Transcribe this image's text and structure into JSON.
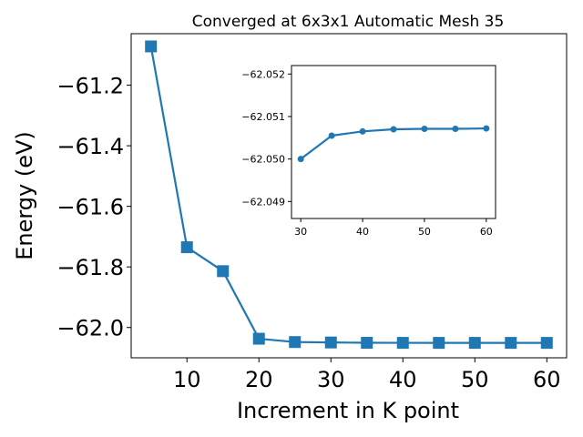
{
  "chart_data": [
    {
      "type": "line",
      "title": "Converged at 6x3x1 Automatic Mesh 35",
      "xlabel": "Increment in K point",
      "ylabel": "Energy (eV)",
      "xlim": [
        2.25,
        62.75
      ],
      "ylim": [
        -62.1,
        -61.03
      ],
      "x_ticks": [
        10,
        20,
        30,
        40,
        50,
        60
      ],
      "x_tick_labels": [
        "10",
        "20",
        "30",
        "40",
        "50",
        "60"
      ],
      "y_ticks": [
        -62.0,
        -61.8,
        -61.6,
        -61.4,
        -61.2
      ],
      "y_tick_labels": [
        "−62.0",
        "−61.8",
        "−61.6",
        "−61.4",
        "−61.2"
      ],
      "marker": "square",
      "color": "#1f77b4",
      "series": [
        {
          "x": [
            5,
            10,
            15,
            20,
            25,
            30,
            35,
            40,
            45,
            50,
            55,
            60
          ],
          "values": [
            -61.072,
            -61.735,
            -61.814,
            -62.037,
            -62.048,
            -62.0494,
            -62.0505,
            -62.0506,
            -62.0507,
            -62.0507,
            -62.0507,
            -62.0507
          ]
        }
      ]
    },
    {
      "type": "line",
      "title": "",
      "xlabel": "",
      "ylabel": "",
      "xlim": [
        28.5,
        61.5
      ],
      "ylim": [
        -62.0486,
        -62.0522
      ],
      "y_inverted": true,
      "x_ticks": [
        30,
        40,
        50,
        60
      ],
      "x_tick_labels": [
        "30",
        "40",
        "50",
        "60"
      ],
      "y_ticks": [
        -62.052,
        -62.051,
        -62.05,
        -62.049
      ],
      "y_tick_labels": [
        "−62.052",
        "−62.051",
        "−62.050",
        "−62.049"
      ],
      "marker": "circle",
      "color": "#1f77b4",
      "series": [
        {
          "x": [
            30,
            35,
            40,
            45,
            50,
            55,
            60
          ],
          "values": [
            -62.05,
            -62.05055,
            -62.05065,
            -62.0507,
            -62.05071,
            -62.05071,
            -62.05072
          ]
        }
      ]
    }
  ]
}
